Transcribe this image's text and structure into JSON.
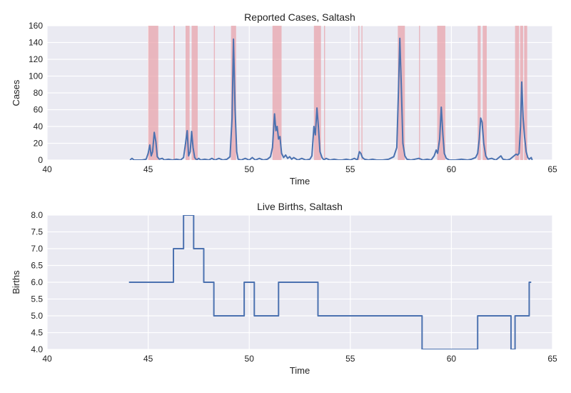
{
  "chart_data": [
    {
      "type": "line",
      "title": "Reported Cases, Saltash",
      "xlabel": "Time",
      "ylabel": "Cases",
      "xlim": [
        40,
        65
      ],
      "ylim": [
        0,
        160
      ],
      "xticks": [
        40,
        45,
        50,
        55,
        60,
        65
      ],
      "yticks": [
        0,
        20,
        40,
        60,
        80,
        100,
        120,
        140,
        160
      ],
      "grid": true,
      "colors": {
        "background": "#eaeaf2",
        "grid": "#ffffff",
        "line": "#4c72b0",
        "shade": "#e8a0a8"
      },
      "shaded_intervals": [
        [
          45.0,
          45.5
        ],
        [
          46.25,
          46.32
        ],
        [
          46.85,
          47.05
        ],
        [
          47.15,
          47.45
        ],
        [
          48.25,
          48.3
        ],
        [
          49.1,
          49.35
        ],
        [
          51.15,
          51.6
        ],
        [
          53.2,
          53.55
        ],
        [
          53.7,
          53.75
        ],
        [
          55.4,
          55.45
        ],
        [
          55.55,
          55.6
        ],
        [
          57.35,
          57.7
        ],
        [
          58.4,
          58.45
        ],
        [
          59.3,
          59.7
        ],
        [
          61.3,
          61.45
        ],
        [
          61.55,
          61.75
        ],
        [
          63.15,
          63.35
        ],
        [
          63.4,
          63.55
        ],
        [
          63.6,
          63.75
        ]
      ],
      "series": [
        {
          "values": [
            [
              44.1,
              0
            ],
            [
              44.2,
              2
            ],
            [
              44.3,
              0
            ],
            [
              44.5,
              0
            ],
            [
              44.7,
              0
            ],
            [
              44.9,
              1
            ],
            [
              45.0,
              8
            ],
            [
              45.08,
              18
            ],
            [
              45.15,
              5
            ],
            [
              45.22,
              10
            ],
            [
              45.3,
              33
            ],
            [
              45.38,
              22
            ],
            [
              45.45,
              4
            ],
            [
              45.55,
              1
            ],
            [
              45.7,
              2
            ],
            [
              45.8,
              0
            ],
            [
              46.0,
              1
            ],
            [
              46.2,
              0
            ],
            [
              46.4,
              1
            ],
            [
              46.6,
              0
            ],
            [
              46.75,
              3
            ],
            [
              46.85,
              20
            ],
            [
              46.93,
              35
            ],
            [
              47.0,
              5
            ],
            [
              47.08,
              10
            ],
            [
              47.15,
              34
            ],
            [
              47.22,
              15
            ],
            [
              47.3,
              3
            ],
            [
              47.4,
              0
            ],
            [
              47.5,
              2
            ],
            [
              47.6,
              0
            ],
            [
              47.8,
              1
            ],
            [
              48.0,
              0
            ],
            [
              48.15,
              2
            ],
            [
              48.3,
              0
            ],
            [
              48.5,
              2
            ],
            [
              48.7,
              0
            ],
            [
              48.9,
              1
            ],
            [
              49.05,
              4
            ],
            [
              49.15,
              50
            ],
            [
              49.22,
              144
            ],
            [
              49.3,
              60
            ],
            [
              49.38,
              10
            ],
            [
              49.45,
              1
            ],
            [
              49.6,
              0
            ],
            [
              49.8,
              2
            ],
            [
              50.0,
              0
            ],
            [
              50.15,
              3
            ],
            [
              50.3,
              0
            ],
            [
              50.5,
              2
            ],
            [
              50.7,
              0
            ],
            [
              50.9,
              1
            ],
            [
              51.05,
              4
            ],
            [
              51.15,
              15
            ],
            [
              51.25,
              55
            ],
            [
              51.32,
              35
            ],
            [
              51.38,
              40
            ],
            [
              51.45,
              25
            ],
            [
              51.52,
              28
            ],
            [
              51.6,
              8
            ],
            [
              51.7,
              3
            ],
            [
              51.8,
              6
            ],
            [
              51.9,
              2
            ],
            [
              52.0,
              4
            ],
            [
              52.1,
              1
            ],
            [
              52.2,
              3
            ],
            [
              52.4,
              0
            ],
            [
              52.6,
              2
            ],
            [
              52.8,
              0
            ],
            [
              53.0,
              1
            ],
            [
              53.1,
              5
            ],
            [
              53.2,
              40
            ],
            [
              53.27,
              30
            ],
            [
              53.35,
              62
            ],
            [
              53.42,
              40
            ],
            [
              53.5,
              10
            ],
            [
              53.6,
              3
            ],
            [
              53.7,
              0
            ],
            [
              53.8,
              2
            ],
            [
              54.0,
              0
            ],
            [
              54.2,
              1
            ],
            [
              54.4,
              0
            ],
            [
              54.6,
              0
            ],
            [
              54.8,
              1
            ],
            [
              55.0,
              0
            ],
            [
              55.2,
              2
            ],
            [
              55.35,
              0
            ],
            [
              55.45,
              10
            ],
            [
              55.52,
              8
            ],
            [
              55.6,
              3
            ],
            [
              55.7,
              1
            ],
            [
              55.9,
              0
            ],
            [
              56.1,
              1
            ],
            [
              56.3,
              0
            ],
            [
              56.6,
              0
            ],
            [
              56.9,
              1
            ],
            [
              57.15,
              4
            ],
            [
              57.3,
              15
            ],
            [
              57.38,
              80
            ],
            [
              57.45,
              145
            ],
            [
              57.52,
              90
            ],
            [
              57.6,
              20
            ],
            [
              57.7,
              5
            ],
            [
              57.8,
              1
            ],
            [
              58.0,
              0
            ],
            [
              58.2,
              1
            ],
            [
              58.4,
              2
            ],
            [
              58.6,
              0
            ],
            [
              58.8,
              1
            ],
            [
              59.0,
              0
            ],
            [
              59.15,
              5
            ],
            [
              59.25,
              12
            ],
            [
              59.32,
              8
            ],
            [
              59.42,
              25
            ],
            [
              59.5,
              63
            ],
            [
              59.58,
              30
            ],
            [
              59.65,
              8
            ],
            [
              59.75,
              2
            ],
            [
              59.9,
              0
            ],
            [
              60.2,
              0
            ],
            [
              60.5,
              1
            ],
            [
              60.8,
              0
            ],
            [
              61.0,
              1
            ],
            [
              61.2,
              3
            ],
            [
              61.3,
              8
            ],
            [
              61.38,
              25
            ],
            [
              61.45,
              50
            ],
            [
              61.52,
              45
            ],
            [
              61.6,
              20
            ],
            [
              61.7,
              5
            ],
            [
              61.8,
              1
            ],
            [
              62.0,
              2
            ],
            [
              62.2,
              0
            ],
            [
              62.45,
              5
            ],
            [
              62.55,
              1
            ],
            [
              62.75,
              0
            ],
            [
              62.9,
              1
            ],
            [
              63.1,
              5
            ],
            [
              63.2,
              7
            ],
            [
              63.28,
              6
            ],
            [
              63.35,
              8
            ],
            [
              63.42,
              40
            ],
            [
              63.48,
              93
            ],
            [
              63.55,
              50
            ],
            [
              63.62,
              28
            ],
            [
              63.7,
              10
            ],
            [
              63.78,
              3
            ],
            [
              63.85,
              1
            ],
            [
              63.95,
              3
            ],
            [
              64.0,
              0
            ]
          ]
        }
      ]
    },
    {
      "type": "line",
      "title": "Live Births, Saltash",
      "xlabel": "Time",
      "ylabel": "Births",
      "xlim": [
        40,
        65
      ],
      "ylim": [
        4.0,
        8.0
      ],
      "xticks": [
        40,
        45,
        50,
        55,
        60,
        65
      ],
      "yticks": [
        4.0,
        4.5,
        5.0,
        5.5,
        6.0,
        6.5,
        7.0,
        7.5,
        8.0
      ],
      "ytick_labels": [
        "4.0",
        "4.5",
        "5.0",
        "5.5",
        "6.0",
        "6.5",
        "7.0",
        "7.5",
        "8.0"
      ],
      "grid": true,
      "colors": {
        "background": "#eaeaf2",
        "grid": "#ffffff",
        "line": "#4c72b0"
      },
      "series": [
        {
          "values": [
            [
              44.05,
              6
            ],
            [
              46.25,
              6
            ],
            [
              46.25,
              7
            ],
            [
              46.75,
              7
            ],
            [
              46.75,
              8
            ],
            [
              47.25,
              8
            ],
            [
              47.25,
              7
            ],
            [
              47.75,
              7
            ],
            [
              47.75,
              6
            ],
            [
              48.25,
              6
            ],
            [
              48.25,
              5
            ],
            [
              49.75,
              5
            ],
            [
              49.75,
              6
            ],
            [
              50.25,
              6
            ],
            [
              50.25,
              5
            ],
            [
              51.45,
              5
            ],
            [
              51.45,
              6
            ],
            [
              53.4,
              6
            ],
            [
              53.4,
              5
            ],
            [
              58.55,
              5
            ],
            [
              58.55,
              4
            ],
            [
              61.3,
              4
            ],
            [
              61.3,
              5
            ],
            [
              62.95,
              5
            ],
            [
              62.95,
              4
            ],
            [
              63.15,
              4
            ],
            [
              63.15,
              5
            ],
            [
              63.85,
              5
            ],
            [
              63.85,
              6
            ],
            [
              63.95,
              6
            ]
          ]
        }
      ]
    }
  ]
}
